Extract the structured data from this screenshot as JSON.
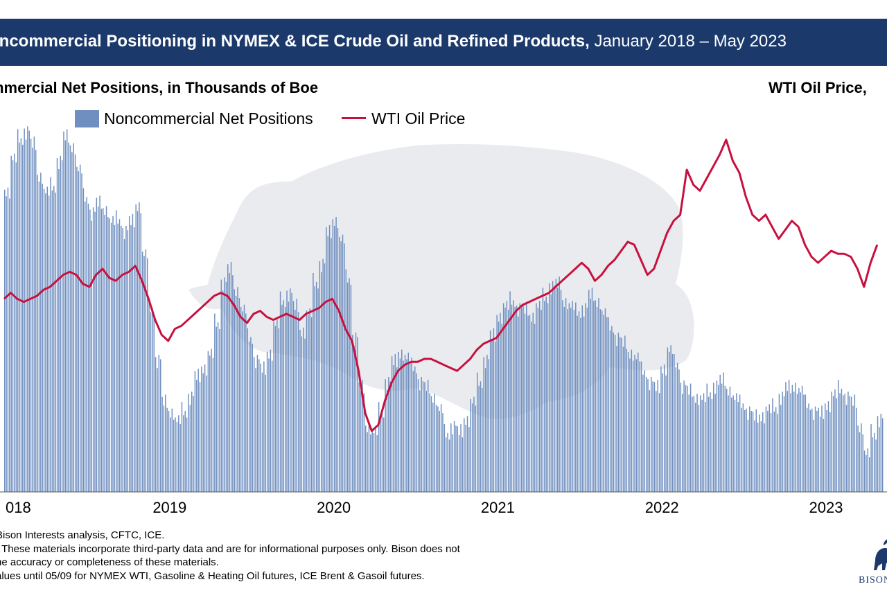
{
  "header": {
    "title_bold": "oncommercial Positioning in NYMEX & ICE Crude Oil and Refined Products,",
    "title_rest": "January 2018 – May 2023"
  },
  "axis_titles": {
    "left": "mmercial Net Positions, in Thousands of Boe",
    "right": "WTI Oil Price,"
  },
  "legend": {
    "bars": "Noncommercial Net Positions",
    "line": "WTI Oil Price"
  },
  "footer": {
    "lines": [
      "Bison Interests analysis, CFTC, ICE.",
      ": These materials incorporate third-party data and are for informational purposes only. Bison does not",
      "he accuracy or completeness of these materials.",
      "alues until 05/09 for NYMEX WTI, Gasoline & Heating Oil futures, ICE Brent & Gasoil futures."
    ]
  },
  "logo": {
    "text": "BISON"
  },
  "colors": {
    "header_bg": "#1b3a6b",
    "bars": "#6f8fc0",
    "line": "#c8103e",
    "watermark": "#e9ebee"
  },
  "chart_data": {
    "type": "bar",
    "x_ticks": [
      "018",
      "2019",
      "2020",
      "2021",
      "2022",
      "2023"
    ],
    "x_range": [
      2018.0,
      2023.38
    ],
    "series": [
      {
        "name": "Noncommercial Net Positions",
        "type": "bar",
        "points": [
          [
            2018.0,
            82
          ],
          [
            2018.04,
            90
          ],
          [
            2018.08,
            96
          ],
          [
            2018.12,
            98
          ],
          [
            2018.16,
            94
          ],
          [
            2018.2,
            86
          ],
          [
            2018.24,
            81
          ],
          [
            2018.28,
            83
          ],
          [
            2018.32,
            90
          ],
          [
            2018.36,
            96
          ],
          [
            2018.4,
            94
          ],
          [
            2018.44,
            87
          ],
          [
            2018.48,
            80
          ],
          [
            2018.52,
            76
          ],
          [
            2018.56,
            78
          ],
          [
            2018.6,
            77
          ],
          [
            2018.64,
            73
          ],
          [
            2018.68,
            74
          ],
          [
            2018.72,
            71
          ],
          [
            2018.76,
            73
          ],
          [
            2018.8,
            78
          ],
          [
            2018.84,
            64
          ],
          [
            2018.88,
            50
          ],
          [
            2018.92,
            36
          ],
          [
            2018.96,
            24
          ],
          [
            2019.0,
            22
          ],
          [
            2019.04,
            19
          ],
          [
            2019.08,
            22
          ],
          [
            2019.12,
            26
          ],
          [
            2019.16,
            31
          ],
          [
            2019.2,
            34
          ],
          [
            2019.24,
            37
          ],
          [
            2019.28,
            46
          ],
          [
            2019.32,
            57
          ],
          [
            2019.36,
            60
          ],
          [
            2019.4,
            55
          ],
          [
            2019.44,
            49
          ],
          [
            2019.48,
            42
          ],
          [
            2019.52,
            36
          ],
          [
            2019.56,
            33
          ],
          [
            2019.6,
            38
          ],
          [
            2019.64,
            45
          ],
          [
            2019.68,
            52
          ],
          [
            2019.72,
            54
          ],
          [
            2019.76,
            50
          ],
          [
            2019.8,
            44
          ],
          [
            2019.84,
            48
          ],
          [
            2019.88,
            57
          ],
          [
            2019.92,
            62
          ],
          [
            2019.96,
            70
          ],
          [
            2020.0,
            74
          ],
          [
            2020.04,
            68
          ],
          [
            2020.08,
            58
          ],
          [
            2020.12,
            42
          ],
          [
            2020.16,
            28
          ],
          [
            2020.2,
            18
          ],
          [
            2020.24,
            16
          ],
          [
            2020.28,
            22
          ],
          [
            2020.32,
            30
          ],
          [
            2020.36,
            35
          ],
          [
            2020.4,
            38
          ],
          [
            2020.44,
            36
          ],
          [
            2020.48,
            34
          ],
          [
            2020.52,
            30
          ],
          [
            2020.56,
            28
          ],
          [
            2020.6,
            26
          ],
          [
            2020.64,
            22
          ],
          [
            2020.68,
            16
          ],
          [
            2020.72,
            18
          ],
          [
            2020.76,
            16
          ],
          [
            2020.8,
            20
          ],
          [
            2020.84,
            24
          ],
          [
            2020.88,
            30
          ],
          [
            2020.92,
            36
          ],
          [
            2020.96,
            42
          ],
          [
            2021.0,
            48
          ],
          [
            2021.04,
            50
          ],
          [
            2021.08,
            52
          ],
          [
            2021.12,
            50
          ],
          [
            2021.16,
            49
          ],
          [
            2021.2,
            48
          ],
          [
            2021.24,
            50
          ],
          [
            2021.28,
            53
          ],
          [
            2021.32,
            56
          ],
          [
            2021.36,
            56
          ],
          [
            2021.4,
            52
          ],
          [
            2021.44,
            50
          ],
          [
            2021.48,
            49
          ],
          [
            2021.52,
            50
          ],
          [
            2021.56,
            53
          ],
          [
            2021.6,
            52
          ],
          [
            2021.64,
            48
          ],
          [
            2021.68,
            45
          ],
          [
            2021.72,
            42
          ],
          [
            2021.76,
            40
          ],
          [
            2021.8,
            38
          ],
          [
            2021.84,
            36
          ],
          [
            2021.88,
            33
          ],
          [
            2021.92,
            30
          ],
          [
            2021.96,
            28
          ],
          [
            2022.0,
            34
          ],
          [
            2022.04,
            38
          ],
          [
            2022.08,
            35
          ],
          [
            2022.12,
            29
          ],
          [
            2022.16,
            27
          ],
          [
            2022.2,
            26
          ],
          [
            2022.24,
            25
          ],
          [
            2022.28,
            27
          ],
          [
            2022.32,
            29
          ],
          [
            2022.36,
            30
          ],
          [
            2022.4,
            28
          ],
          [
            2022.44,
            25
          ],
          [
            2022.48,
            24
          ],
          [
            2022.52,
            22
          ],
          [
            2022.56,
            20
          ],
          [
            2022.6,
            21
          ],
          [
            2022.64,
            22
          ],
          [
            2022.68,
            23
          ],
          [
            2022.72,
            26
          ],
          [
            2022.76,
            28
          ],
          [
            2022.8,
            29
          ],
          [
            2022.84,
            27
          ],
          [
            2022.88,
            24
          ],
          [
            2022.92,
            22
          ],
          [
            2022.96,
            21
          ],
          [
            2023.0,
            24
          ],
          [
            2023.04,
            26
          ],
          [
            2023.08,
            28
          ],
          [
            2023.12,
            26
          ],
          [
            2023.16,
            24
          ],
          [
            2023.2,
            18
          ],
          [
            2023.24,
            10
          ],
          [
            2023.28,
            16
          ],
          [
            2023.32,
            20
          ]
        ]
      },
      {
        "name": "WTI Oil Price",
        "type": "line",
        "points": [
          [
            2018.0,
            62
          ],
          [
            2018.04,
            64
          ],
          [
            2018.08,
            62
          ],
          [
            2018.12,
            61
          ],
          [
            2018.16,
            62
          ],
          [
            2018.2,
            63
          ],
          [
            2018.24,
            65
          ],
          [
            2018.28,
            66
          ],
          [
            2018.32,
            68
          ],
          [
            2018.36,
            70
          ],
          [
            2018.4,
            71
          ],
          [
            2018.44,
            70
          ],
          [
            2018.48,
            67
          ],
          [
            2018.52,
            66
          ],
          [
            2018.56,
            70
          ],
          [
            2018.6,
            72
          ],
          [
            2018.64,
            69
          ],
          [
            2018.68,
            68
          ],
          [
            2018.72,
            70
          ],
          [
            2018.76,
            71
          ],
          [
            2018.8,
            73
          ],
          [
            2018.84,
            68
          ],
          [
            2018.88,
            62
          ],
          [
            2018.92,
            55
          ],
          [
            2018.96,
            50
          ],
          [
            2019.0,
            48
          ],
          [
            2019.04,
            52
          ],
          [
            2019.08,
            53
          ],
          [
            2019.12,
            55
          ],
          [
            2019.16,
            57
          ],
          [
            2019.2,
            59
          ],
          [
            2019.24,
            61
          ],
          [
            2019.28,
            63
          ],
          [
            2019.32,
            64
          ],
          [
            2019.36,
            63
          ],
          [
            2019.4,
            60
          ],
          [
            2019.44,
            56
          ],
          [
            2019.48,
            54
          ],
          [
            2019.52,
            57
          ],
          [
            2019.56,
            58
          ],
          [
            2019.6,
            56
          ],
          [
            2019.64,
            55
          ],
          [
            2019.68,
            56
          ],
          [
            2019.72,
            57
          ],
          [
            2019.76,
            56
          ],
          [
            2019.8,
            55
          ],
          [
            2019.84,
            57
          ],
          [
            2019.88,
            58
          ],
          [
            2019.92,
            59
          ],
          [
            2019.96,
            61
          ],
          [
            2020.0,
            62
          ],
          [
            2020.04,
            58
          ],
          [
            2020.08,
            52
          ],
          [
            2020.12,
            48
          ],
          [
            2020.16,
            38
          ],
          [
            2020.2,
            24
          ],
          [
            2020.24,
            18
          ],
          [
            2020.28,
            20
          ],
          [
            2020.32,
            28
          ],
          [
            2020.36,
            34
          ],
          [
            2020.4,
            38
          ],
          [
            2020.44,
            40
          ],
          [
            2020.48,
            41
          ],
          [
            2020.52,
            41
          ],
          [
            2020.56,
            42
          ],
          [
            2020.6,
            42
          ],
          [
            2020.64,
            41
          ],
          [
            2020.68,
            40
          ],
          [
            2020.72,
            39
          ],
          [
            2020.76,
            38
          ],
          [
            2020.8,
            40
          ],
          [
            2020.84,
            42
          ],
          [
            2020.88,
            45
          ],
          [
            2020.92,
            47
          ],
          [
            2021.0,
            49
          ],
          [
            2021.04,
            52
          ],
          [
            2021.08,
            55
          ],
          [
            2021.12,
            58
          ],
          [
            2021.16,
            60
          ],
          [
            2021.2,
            61
          ],
          [
            2021.24,
            62
          ],
          [
            2021.28,
            63
          ],
          [
            2021.32,
            64
          ],
          [
            2021.36,
            66
          ],
          [
            2021.4,
            68
          ],
          [
            2021.44,
            70
          ],
          [
            2021.48,
            72
          ],
          [
            2021.52,
            74
          ],
          [
            2021.56,
            72
          ],
          [
            2021.6,
            68
          ],
          [
            2021.64,
            70
          ],
          [
            2021.68,
            73
          ],
          [
            2021.72,
            75
          ],
          [
            2021.76,
            78
          ],
          [
            2021.8,
            81
          ],
          [
            2021.84,
            80
          ],
          [
            2021.88,
            75
          ],
          [
            2021.92,
            70
          ],
          [
            2021.96,
            72
          ],
          [
            2022.0,
            78
          ],
          [
            2022.04,
            84
          ],
          [
            2022.08,
            88
          ],
          [
            2022.12,
            90
          ],
          [
            2022.16,
            105
          ],
          [
            2022.2,
            100
          ],
          [
            2022.24,
            98
          ],
          [
            2022.28,
            102
          ],
          [
            2022.32,
            106
          ],
          [
            2022.36,
            110
          ],
          [
            2022.4,
            115
          ],
          [
            2022.44,
            108
          ],
          [
            2022.48,
            104
          ],
          [
            2022.52,
            96
          ],
          [
            2022.56,
            90
          ],
          [
            2022.6,
            88
          ],
          [
            2022.64,
            90
          ],
          [
            2022.68,
            86
          ],
          [
            2022.72,
            82
          ],
          [
            2022.76,
            85
          ],
          [
            2022.8,
            88
          ],
          [
            2022.84,
            86
          ],
          [
            2022.88,
            80
          ],
          [
            2022.92,
            76
          ],
          [
            2022.96,
            74
          ],
          [
            2023.0,
            76
          ],
          [
            2023.04,
            78
          ],
          [
            2023.08,
            77
          ],
          [
            2023.12,
            77
          ],
          [
            2023.16,
            76
          ],
          [
            2023.2,
            72
          ],
          [
            2023.24,
            66
          ],
          [
            2023.28,
            74
          ],
          [
            2023.32,
            80
          ]
        ]
      }
    ]
  }
}
